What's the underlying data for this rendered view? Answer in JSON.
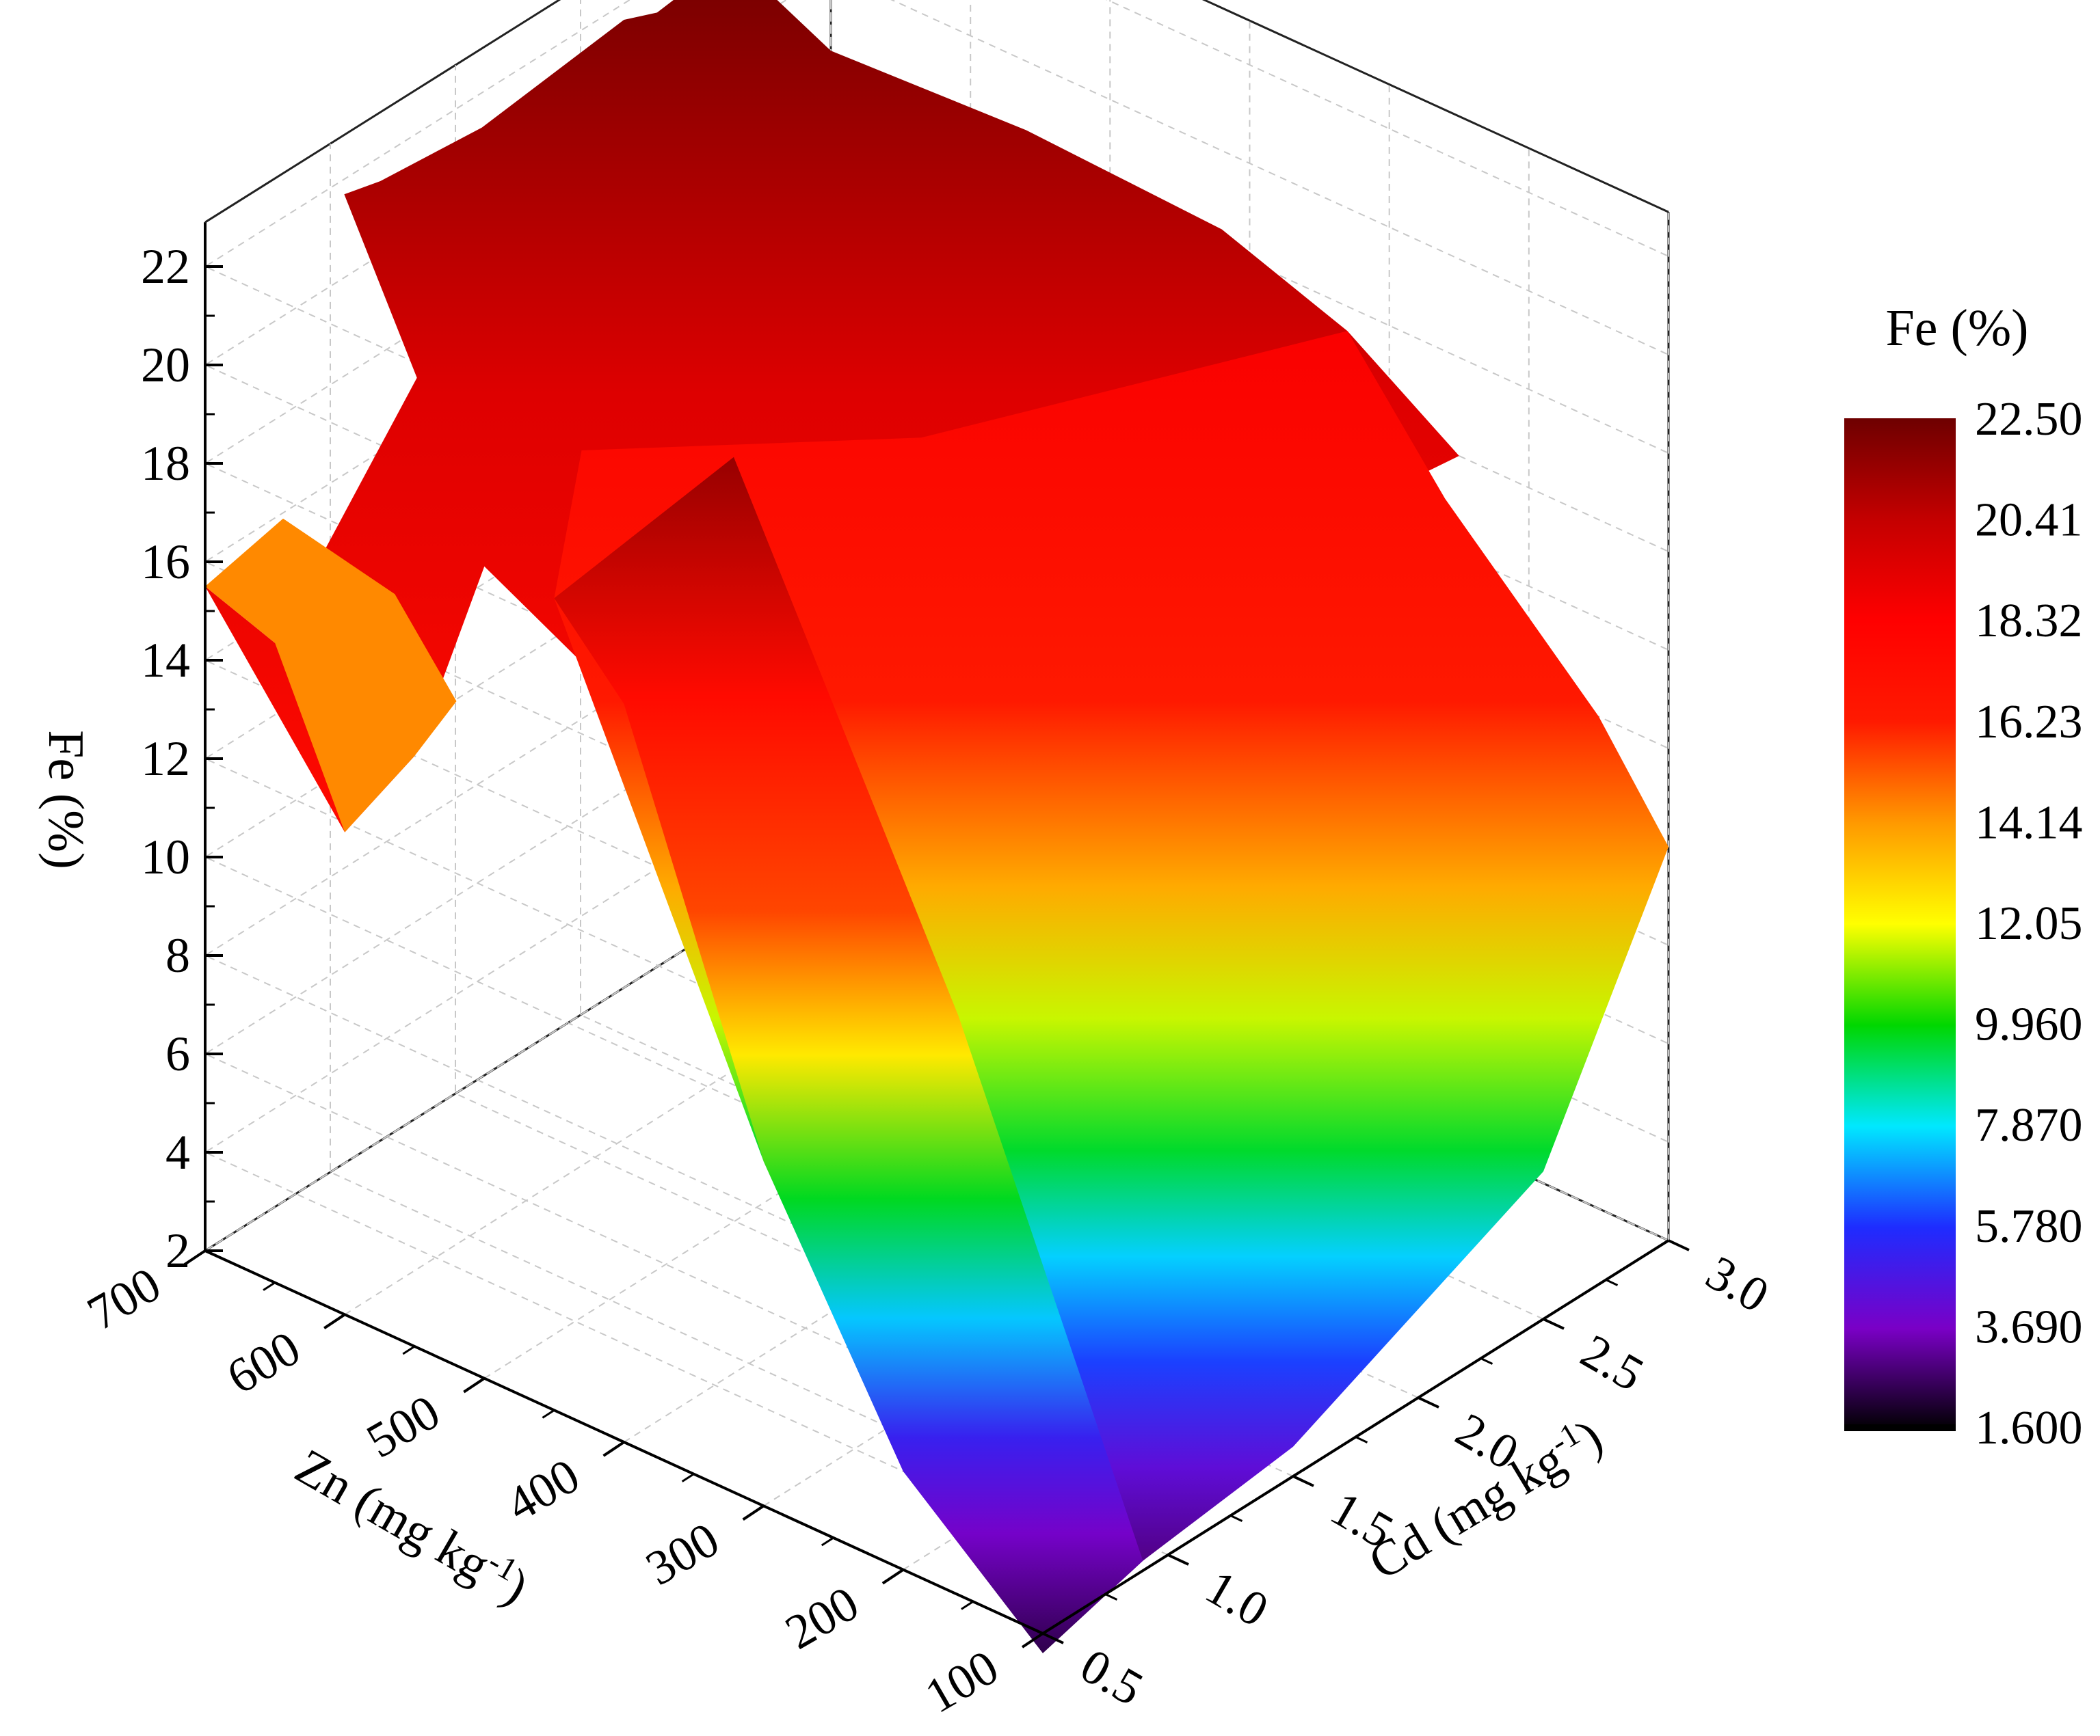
{
  "chart_data": {
    "type": "surface3d",
    "title": "",
    "zlabel": "Fe (%)",
    "xlabel": "Zn (mg kg-1)",
    "xlabel_base": "Zn (mg kg",
    "xlabel_sup": "-1",
    "ylabel": "Cd (mg kg-1)",
    "ylabel_base": "Cd (mg kg",
    "ylabel_sup": "-1",
    "z_ticks": [
      "2",
      "4",
      "6",
      "8",
      "10",
      "12",
      "14",
      "16",
      "18",
      "20",
      "22"
    ],
    "zlim": [
      2,
      22.5
    ],
    "x_ticks": [
      "100",
      "200",
      "300",
      "400",
      "500",
      "600",
      "700"
    ],
    "xlim": [
      100,
      700
    ],
    "y_ticks": [
      "0.5",
      "1.0",
      "1.5",
      "2.0",
      "2.5",
      "3.0"
    ],
    "ylim": [
      0.5,
      3.0
    ],
    "grid": true,
    "colorbar": {
      "title": "Fe (%)",
      "labels": [
        "22.50",
        "20.41",
        "18.32",
        "16.23",
        "14.14",
        "12.05",
        "9.960",
        "7.870",
        "5.780",
        "3.690",
        "1.600"
      ],
      "min": 1.6,
      "max": 22.5
    },
    "colormap": [
      "#000000",
      "#7a00c6",
      "#1e2cff",
      "#00e8ff",
      "#00d700",
      "#ffff00",
      "#ff9900",
      "#ff1a00",
      "#ff0000",
      "#c40000",
      "#6e0000"
    ],
    "surface_points": [
      {
        "zn": 700,
        "cd": 0.5,
        "fe": 15.5
      },
      {
        "zn": 650,
        "cd": 0.5,
        "fe": 15.0
      },
      {
        "zn": 600,
        "cd": 0.5,
        "fe": 11.8
      },
      {
        "zn": 550,
        "cd": 0.5,
        "fe": 14.0
      },
      {
        "zn": 500,
        "cd": 0.5,
        "fe": 18.5
      },
      {
        "zn": 450,
        "cd": 0.5,
        "fe": 18.5
      },
      {
        "zn": 400,
        "cd": 0.5,
        "fe": 17.0
      },
      {
        "zn": 300,
        "cd": 0.5,
        "fe": 9.0
      },
      {
        "zn": 200,
        "cd": 0.5,
        "fe": 4.0
      },
      {
        "zn": 100,
        "cd": 0.5,
        "fe": 1.6
      },
      {
        "zn": 700,
        "cd": 1.0,
        "fe": 22.0
      },
      {
        "zn": 700,
        "cd": 1.5,
        "fe": 21.0
      },
      {
        "zn": 700,
        "cd": 2.0,
        "fe": 20.0
      },
      {
        "zn": 700,
        "cd": 2.5,
        "fe": 19.5
      },
      {
        "zn": 700,
        "cd": 3.0,
        "fe": 18.5
      },
      {
        "zn": 100,
        "cd": 1.0,
        "fe": 3.0
      },
      {
        "zn": 100,
        "cd": 1.5,
        "fe": 8.0
      },
      {
        "zn": 100,
        "cd": 2.0,
        "fe": 13.0
      },
      {
        "zn": 100,
        "cd": 2.5,
        "fe": 15.0
      },
      {
        "zn": 100,
        "cd": 3.0,
        "fe": 18.0
      }
    ]
  }
}
